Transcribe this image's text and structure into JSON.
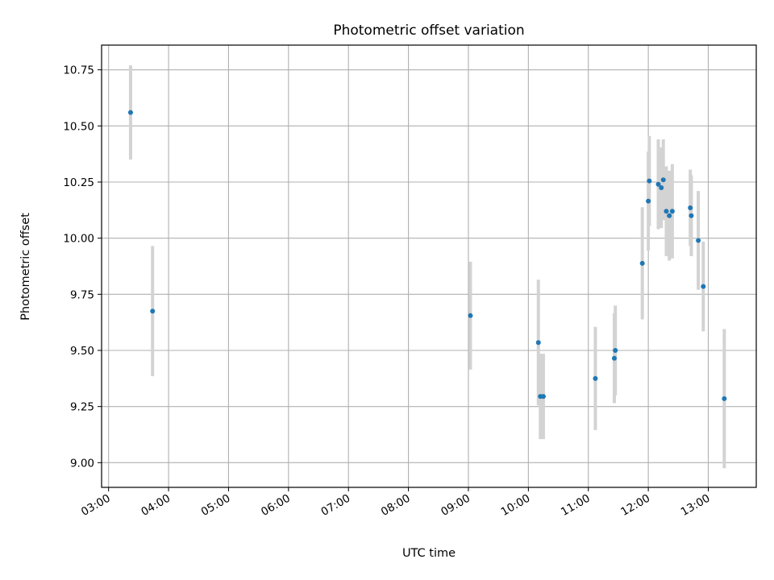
{
  "chart_data": {
    "type": "scatter",
    "title": "Photometric offset variation",
    "xlabel": "UTC time",
    "ylabel": "Photometric offset",
    "x_ticks": [
      "03:00",
      "04:00",
      "05:00",
      "06:00",
      "07:00",
      "08:00",
      "09:00",
      "10:00",
      "11:00",
      "12:00",
      "13:00"
    ],
    "y_ticks": [
      "9.00",
      "9.25",
      "9.50",
      "9.75",
      "10.00",
      "10.25",
      "10.50",
      "10.75"
    ],
    "xlim": [
      "02:53",
      "13:48"
    ],
    "ylim": [
      8.89,
      10.86
    ],
    "grid": true,
    "colors": {
      "point": "#1f77b4",
      "errorbar": "#d3d3d3",
      "grid": "#b0b0b0"
    },
    "series": [
      {
        "points": [
          {
            "x": "03:22",
            "y": 10.56,
            "err": 0.21
          },
          {
            "x": "03:44",
            "y": 9.675,
            "err": 0.29
          },
          {
            "x": "09:02",
            "y": 9.655,
            "err": 0.24
          },
          {
            "x": "10:10",
            "y": 9.535,
            "err": 0.28
          },
          {
            "x": "10:12",
            "y": 9.295,
            "err": 0.19
          },
          {
            "x": "10:15",
            "y": 9.295,
            "err": 0.19
          },
          {
            "x": "11:07",
            "y": 9.375,
            "err": 0.23
          },
          {
            "x": "11:26",
            "y": 9.465,
            "err": 0.2
          },
          {
            "x": "11:27",
            "y": 9.5,
            "err": 0.2
          },
          {
            "x": "11:54",
            "y": 9.888,
            "err": 0.25
          },
          {
            "x": "12:00",
            "y": 10.165,
            "err": 0.22
          },
          {
            "x": "12:01",
            "y": 10.255,
            "err": 0.2
          },
          {
            "x": "12:10",
            "y": 10.24,
            "err": 0.2
          },
          {
            "x": "12:13",
            "y": 10.225,
            "err": 0.18
          },
          {
            "x": "12:15",
            "y": 10.26,
            "err": 0.18
          },
          {
            "x": "12:18",
            "y": 10.12,
            "err": 0.2
          },
          {
            "x": "12:21",
            "y": 10.1,
            "err": 0.2
          },
          {
            "x": "12:24",
            "y": 10.12,
            "err": 0.21
          },
          {
            "x": "12:42",
            "y": 10.135,
            "err": 0.17
          },
          {
            "x": "12:43",
            "y": 10.1,
            "err": 0.18
          },
          {
            "x": "12:50",
            "y": 9.99,
            "err": 0.22
          },
          {
            "x": "12:55",
            "y": 9.785,
            "err": 0.2
          },
          {
            "x": "13:16",
            "y": 9.285,
            "err": 0.31
          }
        ]
      }
    ]
  }
}
